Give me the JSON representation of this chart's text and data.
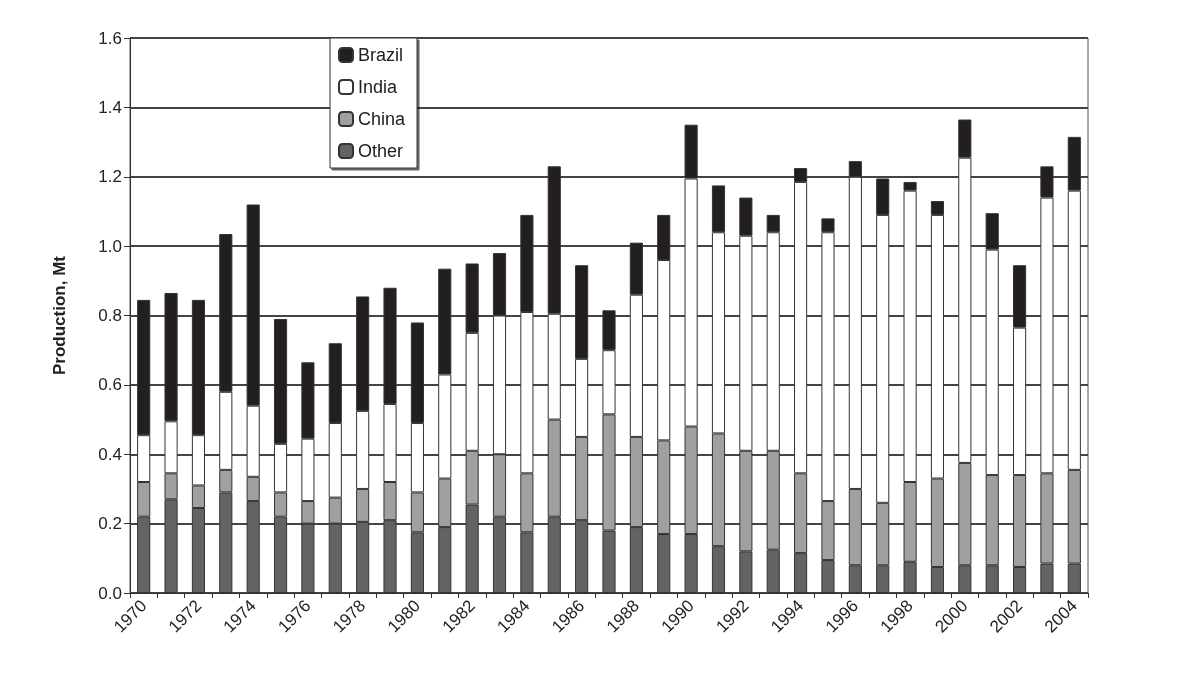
{
  "chart_data": {
    "type": "bar",
    "stacked": true,
    "ylabel": "Production, Mt",
    "grid": "y",
    "legend": "top left",
    "categories": [
      "1970",
      null,
      "1972",
      null,
      "1974",
      null,
      "1976",
      null,
      "1978",
      null,
      "1980",
      null,
      "1982",
      null,
      "1984",
      null,
      "1986",
      null,
      "1988",
      null,
      "1990",
      null,
      "1992",
      null,
      "1994",
      null,
      "1996",
      null,
      "1998",
      null,
      "2000",
      null,
      "2002",
      null,
      "2004"
    ],
    "ylim": [
      0,
      1.6
    ],
    "yticks": [
      {
        "value": 0,
        "label": "0.0"
      },
      {
        "value": 0.2,
        "label": "0.2"
      },
      {
        "value": 0.4,
        "label": "0.4"
      },
      {
        "value": 0.6,
        "label": "0.6"
      },
      {
        "value": 0.8,
        "label": "0.8"
      },
      {
        "value": 1,
        "label": "1.0"
      },
      {
        "value": 1.2,
        "label": "1.2"
      },
      {
        "value": 1.4,
        "label": "1.4"
      },
      {
        "value": 1.6,
        "label": "1.6"
      }
    ],
    "series": [
      {
        "name": "Other",
        "color": "#636363",
        "values": [
          0.22,
          0.27,
          0.245,
          0.29,
          0.265,
          0.22,
          0.2,
          0.2,
          0.205,
          0.21,
          0.175,
          0.19,
          0.255,
          0.22,
          0.175,
          0.22,
          0.21,
          0.18,
          0.19,
          0.17,
          0.17,
          0.135,
          0.12,
          0.125,
          0.115,
          0.095,
          0.08,
          0.08,
          0.09,
          0.075,
          0.08,
          0.08,
          0.075,
          0.085,
          0.085
        ]
      },
      {
        "name": "China",
        "color": "#a0a0a0",
        "values": [
          0.1,
          0.075,
          0.065,
          0.065,
          0.07,
          0.07,
          0.065,
          0.075,
          0.095,
          0.11,
          0.115,
          0.14,
          0.155,
          0.18,
          0.17,
          0.28,
          0.24,
          0.335,
          0.26,
          0.27,
          0.31,
          0.325,
          0.29,
          0.285,
          0.23,
          0.17,
          0.22,
          0.18,
          0.23,
          0.255,
          0.295,
          0.26,
          0.265,
          0.26,
          0.27
        ]
      },
      {
        "name": "India",
        "color": "#ffffff",
        "values": [
          0.135,
          0.15,
          0.145,
          0.225,
          0.205,
          0.14,
          0.18,
          0.215,
          0.225,
          0.225,
          0.2,
          0.3,
          0.34,
          0.4,
          0.465,
          0.305,
          0.225,
          0.185,
          0.41,
          0.52,
          0.715,
          0.58,
          0.62,
          0.63,
          0.84,
          0.775,
          0.9,
          0.83,
          0.84,
          0.76,
          0.88,
          0.65,
          0.425,
          0.795,
          0.805
        ]
      },
      {
        "name": "Brazil",
        "color": "#231f20",
        "values": [
          0.39,
          0.37,
          0.39,
          0.455,
          0.58,
          0.36,
          0.22,
          0.23,
          0.33,
          0.335,
          0.29,
          0.305,
          0.2,
          0.18,
          0.28,
          0.425,
          0.27,
          0.115,
          0.15,
          0.13,
          0.155,
          0.135,
          0.11,
          0.05,
          0.04,
          0.04,
          0.045,
          0.105,
          0.025,
          0.04,
          0.11,
          0.105,
          0.18,
          0.09,
          0.155
        ]
      }
    ]
  }
}
